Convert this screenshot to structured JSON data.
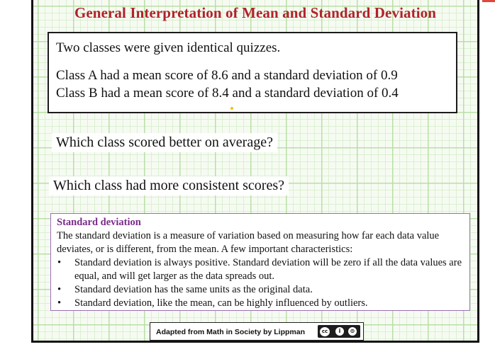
{
  "slide": {
    "title": "General Interpretation of Mean and Standard Deviation",
    "problem": {
      "intro": "Two classes were given identical quizzes.",
      "class_a": "Class A had a mean score of 8.6 and a standard deviation of 0.9",
      "class_b": "Class B had a mean score of 8.4 and a standard deviation of 0.4"
    },
    "questions": {
      "q1": "Which class scored better on average?",
      "q2": "Which class had more consistent scores?"
    },
    "definition": {
      "heading": "Standard deviation",
      "body": "The standard deviation is a measure of variation based on measuring how far each data value deviates, or is different, from the mean.  A few important characteristics:",
      "bullets": [
        "Standard deviation is always positive.  Standard deviation will be zero if all the data values are equal, and will get larger as the data spreads out.",
        "Standard deviation has the same units as the original data.",
        "Standard deviation, like the mean, can be highly influenced by outliers."
      ],
      "bullet_glyph": "•"
    },
    "credit": {
      "text": "Adapted from Math in Society by Lippman",
      "license_badge": "cc-by-sa-icon",
      "badge_glyphs": [
        "cc",
        "i",
        "⊙"
      ]
    }
  },
  "colors": {
    "title": "#b0232a",
    "definition_heading": "#7a2b8a",
    "definition_border": "#9b6fb5",
    "grid": "#b9dfa6"
  }
}
